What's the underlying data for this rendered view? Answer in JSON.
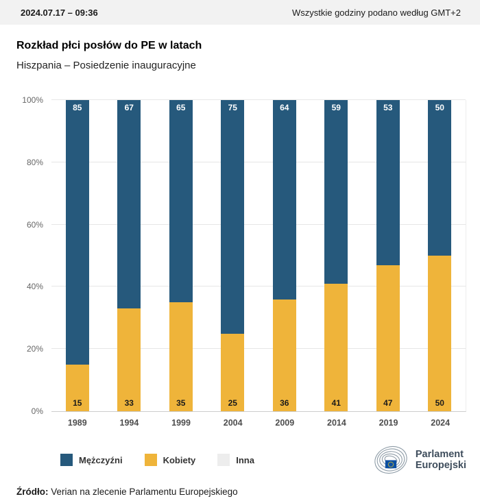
{
  "topbar": {
    "datetime": "2024.07.17 – 09:36",
    "timezone_note": "Wszystkie godziny podano według GMT+2"
  },
  "header": {
    "title": "Rozkład płci posłów do PE w latach",
    "subtitle": "Hiszpania – Posiedzenie inauguracyjne"
  },
  "chart_data": {
    "type": "bar",
    "stacked": true,
    "stack_total": 100,
    "categories": [
      "1989",
      "1994",
      "1999",
      "2004",
      "2009",
      "2014",
      "2019",
      "2024"
    ],
    "series": [
      {
        "name": "Mężczyźni",
        "color": "#26597c",
        "label_color": "#ffffff",
        "label_align": "top",
        "values": [
          85,
          67,
          65,
          75,
          64,
          59,
          53,
          50
        ]
      },
      {
        "name": "Kobiety",
        "color": "#efb43a",
        "label_color": "#1a1a1a",
        "label_align": "bottom",
        "values": [
          15,
          33,
          35,
          25,
          36,
          41,
          47,
          50
        ]
      },
      {
        "name": "Inna",
        "color": "#ededed",
        "label_color": "#1a1a1a",
        "label_align": "bottom",
        "values": [
          0,
          0,
          0,
          0,
          0,
          0,
          0,
          0
        ]
      }
    ],
    "title": "Rozkład płci posłów do PE w latach",
    "xlabel": "",
    "ylabel": "",
    "y_ticks": [
      "0%",
      "20%",
      "40%",
      "60%",
      "80%",
      "100%"
    ],
    "ylim": [
      0,
      100
    ],
    "grid": true,
    "legend_position": "bottom-left"
  },
  "legend": {
    "items": [
      {
        "label": "Mężczyźni",
        "color": "#26597c"
      },
      {
        "label": "Kobiety",
        "color": "#efb43a"
      },
      {
        "label": "Inna",
        "color": "#ededed"
      }
    ]
  },
  "logo": {
    "line1": "Parlament",
    "line2": "Europejski"
  },
  "source": {
    "label": "Źródło:",
    "text": " Verian na zlecenie Parlamentu Europejskiego"
  },
  "colors": {
    "men": "#26597c",
    "women": "#efb43a",
    "other": "#ededed",
    "topbar_bg": "#f2f2f2",
    "grid": "#e6e6e6"
  }
}
